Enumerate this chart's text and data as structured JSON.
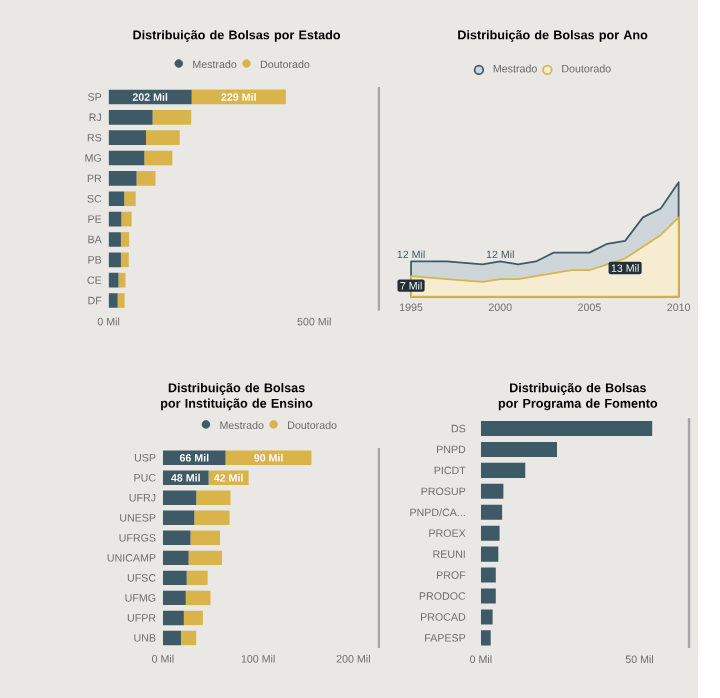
{
  "chart_data": [
    {
      "type": "bar",
      "orientation": "horizontal",
      "stacked": true,
      "title": "Distribuição de Bolsas por Estado",
      "legend": "top",
      "categories": [
        "SP",
        "RJ",
        "RS",
        "MG",
        "PR",
        "SC",
        "PE",
        "BA",
        "PB",
        "CE",
        "DF"
      ],
      "series": [
        {
          "name": "Mestrado",
          "color": "#3d5a66",
          "values": [
            202,
            107,
            91,
            87,
            68,
            38,
            31,
            30,
            30,
            24,
            22
          ],
          "value_labels": [
            "202 Mil",
            null,
            null,
            null,
            null,
            null,
            null,
            null,
            null,
            null,
            null
          ]
        },
        {
          "name": "Doutorado",
          "color": "#d9b44a",
          "values": [
            229,
            94,
            82,
            68,
            46,
            28,
            25,
            20,
            19,
            17,
            17
          ],
          "value_labels": [
            "229 Mil",
            null,
            null,
            null,
            null,
            null,
            null,
            null,
            null,
            null,
            null
          ]
        }
      ],
      "xlim": [
        0,
        660
      ],
      "xticks": [
        {
          "value": 0,
          "label": "0 Mil"
        },
        {
          "value": 500,
          "label": "500 Mil"
        }
      ]
    },
    {
      "type": "area",
      "title": "Distribuição de Bolsas por Ano",
      "legend": "top",
      "x": [
        1995,
        1997,
        1999,
        2000,
        2001,
        2002,
        2003,
        2004,
        2005,
        2006,
        2007,
        2008,
        2009,
        2010
      ],
      "series": [
        {
          "name": "Mestrado",
          "color": "#3d5a66",
          "values": [
            12,
            12,
            11,
            12,
            11,
            12,
            15,
            15,
            15,
            18,
            19,
            27,
            30,
            39
          ],
          "value_labels": [
            "12 Mil",
            null,
            null,
            "12 Mil",
            null,
            null,
            null,
            null,
            null,
            null,
            null,
            null,
            null,
            null
          ]
        },
        {
          "name": "Doutorado",
          "color": "#d9b44a",
          "values": [
            7,
            6,
            5,
            6,
            6,
            7,
            8,
            9,
            9,
            11,
            13,
            17,
            21,
            27
          ],
          "value_labels": [
            "7 Mil",
            null,
            null,
            null,
            null,
            null,
            null,
            null,
            null,
            null,
            "13 Mil",
            null,
            null,
            null
          ]
        }
      ],
      "xlim": [
        1995,
        2010
      ],
      "xticks": [
        1995,
        2000,
        2005,
        2010
      ]
    },
    {
      "type": "bar",
      "orientation": "horizontal",
      "stacked": true,
      "title": "Distribuição de Bolsas por Instituição de Ensino",
      "legend": "top",
      "categories": [
        "USP",
        "PUC",
        "UFRJ",
        "UNESP",
        "UFRGS",
        "UNICAMP",
        "UFSC",
        "UFMG",
        "UFPR",
        "UNB"
      ],
      "series": [
        {
          "name": "Mestrado",
          "color": "#3d5a66",
          "values": [
            66,
            48,
            35,
            33,
            29,
            27,
            25,
            24,
            22,
            19
          ],
          "value_labels": [
            "66 Mil",
            "48 Mil",
            null,
            null,
            null,
            null,
            null,
            null,
            null,
            null
          ]
        },
        {
          "name": "Doutorado",
          "color": "#d9b44a",
          "values": [
            90,
            42,
            36,
            37,
            31,
            35,
            22,
            26,
            20,
            16
          ],
          "value_labels": [
            "90 Mil",
            "42 Mil",
            null,
            null,
            null,
            null,
            null,
            null,
            null,
            null
          ]
        }
      ],
      "xlim": [
        0,
        228
      ],
      "xticks": [
        {
          "value": 0,
          "label": "0 Mil"
        },
        {
          "value": 100,
          "label": "100 Mil"
        },
        {
          "value": 200,
          "label": "200 Mil"
        }
      ]
    },
    {
      "type": "bar",
      "orientation": "horizontal",
      "title": "Distribuição de Bolsas por Programa de Fomento",
      "categories": [
        "DS",
        "PNPD",
        "PICDT",
        "PROSUP",
        "PNPD/CA...",
        "PROEX",
        "REUNI",
        "PROF",
        "PRODOC",
        "PROCAD",
        "FAPESP"
      ],
      "values": [
        54,
        24,
        14,
        7.1,
        6.7,
        5.9,
        5.5,
        4.7,
        4.7,
        3.7,
        3.1
      ],
      "color": "#3d5a66",
      "xlim": [
        0,
        66
      ],
      "xticks": [
        {
          "value": 0,
          "label": "0 Mil"
        },
        {
          "value": 50,
          "label": "50 Mil"
        }
      ]
    }
  ]
}
